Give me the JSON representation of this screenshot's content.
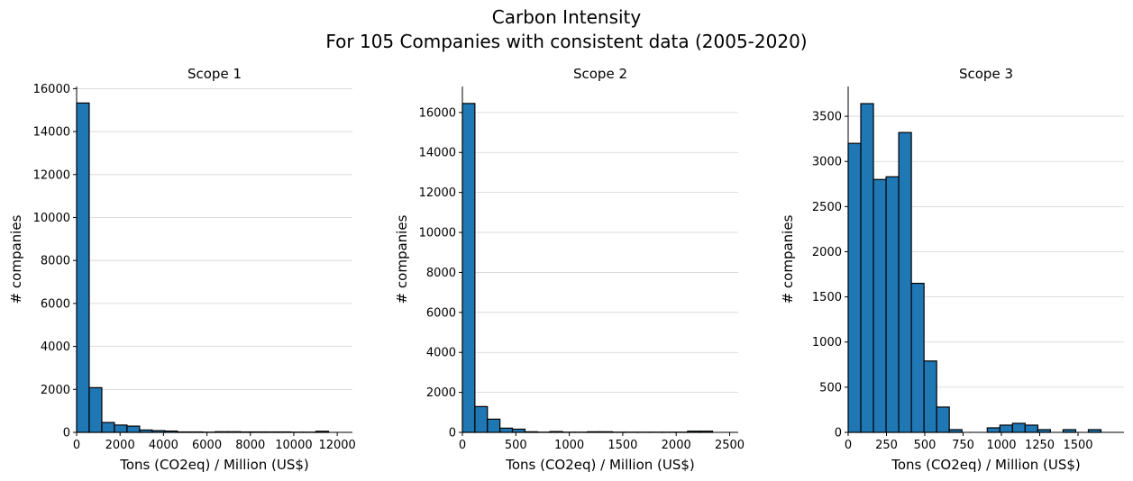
{
  "figure": {
    "title_line1": "Carbon Intensity",
    "title_line2": "For 105 Companies with consistent data (2005-2020)"
  },
  "colors": {
    "bar_fill": "#1f77b4",
    "bar_edge": "#000000",
    "grid": "#d3d3d3"
  },
  "chart_data": [
    {
      "type": "bar",
      "title": "Scope 1",
      "xlabel": "Tons (CO2eq) / Million (US$)",
      "ylabel": "# companies",
      "xlim": [
        0,
        12700
      ],
      "ylim": [
        0,
        16100
      ],
      "xticks": [
        0,
        2000,
        4000,
        6000,
        8000,
        10000,
        12000
      ],
      "yticks": [
        0,
        2000,
        4000,
        6000,
        8000,
        10000,
        12000,
        14000,
        16000
      ],
      "grid": "y",
      "bin_width": 580,
      "bin_starts": [
        0,
        580,
        1160,
        1740,
        2320,
        2900,
        3480,
        4060,
        4640,
        5220,
        5800,
        6380,
        6960,
        7540,
        8120,
        8700,
        9280,
        9860,
        10440,
        11020
      ],
      "values": [
        15330,
        2080,
        460,
        340,
        290,
        110,
        80,
        60,
        20,
        20,
        10,
        30,
        30,
        20,
        20,
        20,
        20,
        10,
        10,
        50
      ]
    },
    {
      "type": "bar",
      "title": "Scope 2",
      "xlabel": "Tons (CO2eq) / Million (US$)",
      "ylabel": "# companies",
      "xlim": [
        0,
        2580
      ],
      "ylim": [
        0,
        17300
      ],
      "xticks": [
        0,
        500,
        1000,
        1500,
        2000,
        2500
      ],
      "yticks": [
        0,
        2000,
        4000,
        6000,
        8000,
        10000,
        12000,
        14000,
        16000
      ],
      "grid": "y",
      "bin_width": 117,
      "bin_starts": [
        0,
        117,
        234,
        351,
        468,
        585,
        702,
        819,
        936,
        1053,
        1170,
        1287,
        1404,
        1521,
        1638,
        1755,
        1872,
        1989,
        2106,
        2223
      ],
      "values": [
        16450,
        1290,
        660,
        210,
        160,
        30,
        10,
        40,
        10,
        10,
        30,
        30,
        10,
        10,
        10,
        10,
        10,
        10,
        60,
        60
      ]
    },
    {
      "type": "bar",
      "title": "Scope 3",
      "xlabel": "Tons (CO2eq) / Million (US$)",
      "ylabel": "# companies",
      "xlim": [
        0,
        1800
      ],
      "ylim": [
        0,
        3830
      ],
      "xticks": [
        0,
        250,
        500,
        750,
        1000,
        1250,
        1500
      ],
      "yticks": [
        0,
        500,
        1000,
        1500,
        2000,
        2500,
        3000,
        3500
      ],
      "grid": "y",
      "bin_width": 82.5,
      "bin_starts": [
        0,
        82.5,
        165,
        247.5,
        330,
        412.5,
        495,
        577.5,
        660,
        742.5,
        825,
        907.5,
        990,
        1072.5,
        1155,
        1237.5,
        1320,
        1402.5,
        1485,
        1567.5
      ],
      "values": [
        3200,
        3640,
        2800,
        2830,
        3320,
        1650,
        790,
        280,
        30,
        0,
        0,
        50,
        80,
        100,
        80,
        30,
        0,
        30,
        0,
        30
      ]
    }
  ]
}
